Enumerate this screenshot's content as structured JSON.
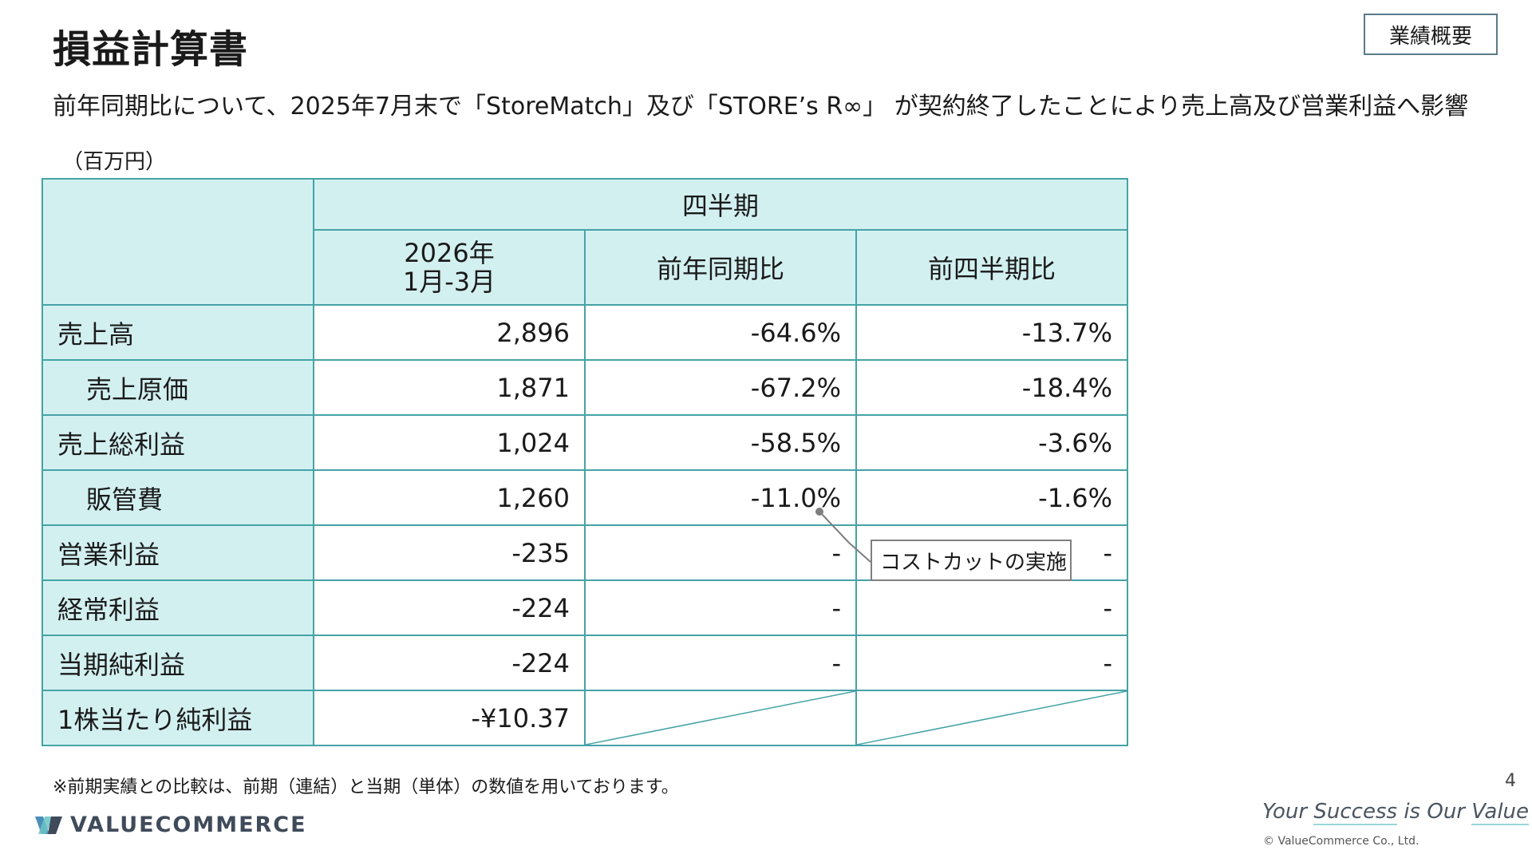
{
  "header": {
    "title": "損益計算書",
    "badge": "業績概要",
    "subtitle": "前年同期比について、2025年7月末で「StoreMatch」及び「STORE’s R∞」 が契約終了したことにより売上高及び営業利益へ影響",
    "unit": "（百万円）"
  },
  "table": {
    "group_header": "四半期",
    "col_headers": {
      "period_line1": "2026年",
      "period_line2": "1月-3月",
      "yoy": "前年同期比",
      "qoq": "前四半期比"
    },
    "rows": [
      {
        "label": "売上高",
        "value": "2,896",
        "yoy": "-64.6%",
        "qoq": "-13.7%"
      },
      {
        "label": "売上原価",
        "value": "1,871",
        "yoy": "-67.2%",
        "qoq": "-18.4%"
      },
      {
        "label": "売上総利益",
        "value": "1,024",
        "yoy": "-58.5%",
        "qoq": "-3.6%"
      },
      {
        "label": "販管費",
        "value": "1,260",
        "yoy": "-11.0%",
        "qoq": "-1.6%"
      },
      {
        "label": "営業利益",
        "value": "-235",
        "yoy": "-",
        "qoq": "-"
      },
      {
        "label": "経常利益",
        "value": "-224",
        "yoy": "-",
        "qoq": "-"
      },
      {
        "label": "当期純利益",
        "value": "-224",
        "yoy": "-",
        "qoq": "-"
      },
      {
        "label": "1株当たり純利益",
        "value": "-¥10.37"
      }
    ]
  },
  "callout": {
    "text": "コストカットの実施"
  },
  "footer": {
    "note": "※前期実績との比較は、前期（連結）と当期（単体）の数値を用いております。",
    "page_number": "4",
    "logo_text": "VALUECOMMERCE",
    "slogan": {
      "w1": "Your",
      "w2": "Success",
      "w3": "is",
      "w4": "Our",
      "w5": "Value"
    },
    "copyright": "© ValueCommerce Co., Ltd."
  },
  "colors": {
    "header_fill": "#d3f0f1",
    "border": "#45a3a6",
    "badge_border": "#5a7a88"
  }
}
